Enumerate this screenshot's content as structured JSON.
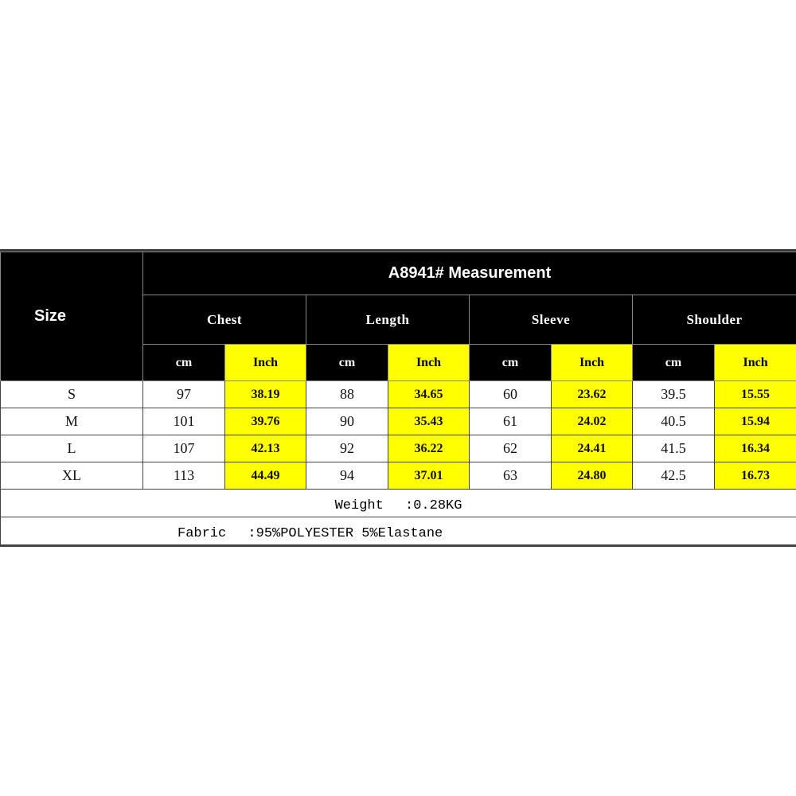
{
  "title": "A8941# Measurement",
  "size_header": "Size",
  "groups": [
    "Chest",
    "Length",
    "Sleeve",
    "Shoulder"
  ],
  "unit_labels": {
    "cm": "cm",
    "inch": "Inch"
  },
  "colors": {
    "header_bg": "#000000",
    "inch_highlight": "#ffff00"
  },
  "rows": [
    {
      "size": "S",
      "values": [
        "97",
        "38.19",
        "88",
        "34.65",
        "60",
        "23.62",
        "39.5",
        "15.55"
      ]
    },
    {
      "size": "M",
      "values": [
        "101",
        "39.76",
        "90",
        "35.43",
        "61",
        "24.02",
        "40.5",
        "15.94"
      ]
    },
    {
      "size": "L",
      "values": [
        "107",
        "42.13",
        "92",
        "36.22",
        "62",
        "24.41",
        "41.5",
        "16.34"
      ]
    },
    {
      "size": "XL",
      "values": [
        "113",
        "44.49",
        "94",
        "37.01",
        "63",
        "24.80",
        "42.5",
        "16.73"
      ]
    }
  ],
  "weight": "Weight　 :0.28KG",
  "fabric": "Fabric　 :95%POLYESTER 5%Elastane"
}
